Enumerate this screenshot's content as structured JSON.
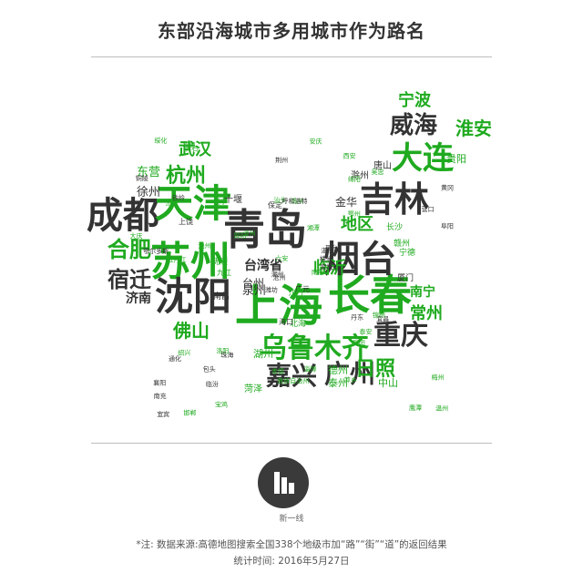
{
  "header": {
    "title": "东部沿海城市多用城市作为路名"
  },
  "chart_data": {
    "type": "wordcloud",
    "title": "东部沿海城市多用城市作为路名",
    "colors": {
      "dark": "#333333",
      "green": "#1faa1f",
      "light": "#6cc46c",
      "grey": "#777777"
    },
    "words": [
      {
        "text": "成都",
        "weight": 40,
        "color": "dark"
      },
      {
        "text": "天津",
        "weight": 42,
        "color": "green"
      },
      {
        "text": "苏州",
        "weight": 44,
        "color": "green"
      },
      {
        "text": "青岛",
        "weight": 46,
        "color": "dark"
      },
      {
        "text": "上海",
        "weight": 48,
        "color": "green"
      },
      {
        "text": "长春",
        "weight": 46,
        "color": "green"
      },
      {
        "text": "沈阳",
        "weight": 42,
        "color": "dark"
      },
      {
        "text": "烟台",
        "weight": 40,
        "color": "dark"
      },
      {
        "text": "吉林",
        "weight": 38,
        "color": "dark"
      },
      {
        "text": "大连",
        "weight": 34,
        "color": "green"
      },
      {
        "text": "乌鲁木齐",
        "weight": 30,
        "color": "green"
      },
      {
        "text": "重庆",
        "weight": 30,
        "color": "dark"
      },
      {
        "text": "嘉兴",
        "weight": 28,
        "color": "dark"
      },
      {
        "text": "广州",
        "weight": 28,
        "color": "dark"
      },
      {
        "text": "威海",
        "weight": 26,
        "color": "dark"
      },
      {
        "text": "合肥",
        "weight": 24,
        "color": "green"
      },
      {
        "text": "宿迁",
        "weight": 24,
        "color": "dark"
      },
      {
        "text": "杭州",
        "weight": 22,
        "color": "green"
      },
      {
        "text": "日照",
        "weight": 22,
        "color": "green"
      },
      {
        "text": "淮安",
        "weight": 20,
        "color": "green"
      },
      {
        "text": "佛山",
        "weight": 20,
        "color": "green"
      },
      {
        "text": "宁波",
        "weight": 18,
        "color": "green"
      },
      {
        "text": "武汉",
        "weight": 18,
        "color": "green"
      },
      {
        "text": "地区",
        "weight": 18,
        "color": "green"
      },
      {
        "text": "临沂",
        "weight": 18,
        "color": "green"
      },
      {
        "text": "常州",
        "weight": 18,
        "color": "green"
      },
      {
        "text": "济南",
        "weight": 14,
        "color": "dark"
      },
      {
        "text": "台湾省",
        "weight": 14,
        "color": "dark"
      },
      {
        "text": "东营",
        "weight": 13,
        "color": "green"
      },
      {
        "text": "徐州",
        "weight": 13,
        "color": "dark"
      },
      {
        "text": "南宁",
        "weight": 14,
        "color": "green"
      },
      {
        "text": "金华",
        "weight": 12,
        "color": "dark"
      },
      {
        "text": "泉州",
        "weight": 13,
        "color": "dark"
      },
      {
        "text": "台州",
        "weight": 12,
        "color": "dark"
      },
      {
        "text": "湖州",
        "weight": 11,
        "color": "green"
      },
      {
        "text": "德州",
        "weight": 11,
        "color": "green"
      },
      {
        "text": "泰州",
        "weight": 11,
        "color": "green"
      },
      {
        "text": "中山",
        "weight": 11,
        "color": "green"
      },
      {
        "text": "菏泽",
        "weight": 10,
        "color": "green"
      },
      {
        "text": "唐山",
        "weight": 10,
        "color": "dark"
      },
      {
        "text": "贵阳",
        "weight": 11,
        "color": "green"
      },
      {
        "text": "滁州",
        "weight": 10,
        "color": "dark"
      },
      {
        "text": "十堰",
        "weight": 10,
        "color": "dark"
      },
      {
        "text": "抚顺",
        "weight": 9,
        "color": "green"
      },
      {
        "text": "南昌",
        "weight": 9,
        "color": "dark"
      },
      {
        "text": "厦门",
        "weight": 9,
        "color": "dark"
      },
      {
        "text": "长沙",
        "weight": 9,
        "color": "green"
      },
      {
        "text": "赣州",
        "weight": 9,
        "color": "green"
      },
      {
        "text": "北海",
        "weight": 9,
        "color": "green"
      },
      {
        "text": "宁德",
        "weight": 9,
        "color": "green"
      },
      {
        "text": "广元",
        "weight": 8,
        "color": "dark"
      },
      {
        "text": "保定",
        "weight": 8,
        "color": "dark"
      },
      {
        "text": "上饶",
        "weight": 8,
        "color": "dark"
      },
      {
        "text": "九江",
        "weight": 8,
        "color": "green"
      },
      {
        "text": "海口",
        "weight": 8,
        "color": "dark"
      },
      {
        "text": "江门",
        "weight": 8,
        "color": "green"
      },
      {
        "text": "济宁",
        "weight": 8,
        "color": "green"
      },
      {
        "text": "沧州",
        "weight": 7,
        "color": "dark"
      },
      {
        "text": "襄阳",
        "weight": 7,
        "color": "dark"
      },
      {
        "text": "湛江",
        "weight": 7,
        "color": "dark"
      },
      {
        "text": "珠海",
        "weight": 7,
        "color": "dark"
      },
      {
        "text": "西安",
        "weight": 7,
        "color": "green"
      },
      {
        "text": "扬州",
        "weight": 7,
        "color": "green"
      },
      {
        "text": "绵阳",
        "weight": 7,
        "color": "green"
      },
      {
        "text": "南阳",
        "weight": 7,
        "color": "green"
      },
      {
        "text": "黄石",
        "weight": 7,
        "color": "green"
      },
      {
        "text": "温州",
        "weight": 7,
        "color": "green"
      },
      {
        "text": "牡丹江",
        "weight": 7,
        "color": "green"
      },
      {
        "text": "黄冈",
        "weight": 7,
        "color": "dark"
      },
      {
        "text": "潍坊",
        "weight": 7,
        "color": "dark"
      },
      {
        "text": "鄂州",
        "weight": 7,
        "color": "green"
      },
      {
        "text": "邯郸",
        "weight": 7,
        "color": "green"
      },
      {
        "text": "汕头",
        "weight": 7,
        "color": "green"
      },
      {
        "text": "湘潭",
        "weight": 7,
        "color": "green"
      },
      {
        "text": "绍兴",
        "weight": 7,
        "color": "green"
      },
      {
        "text": "漳州",
        "weight": 7,
        "color": "green"
      },
      {
        "text": "南充",
        "weight": 7,
        "color": "dark"
      },
      {
        "text": "临汾",
        "weight": 7,
        "color": "dark"
      },
      {
        "text": "呼和浩特",
        "weight": 7,
        "color": "dark"
      },
      {
        "text": "邢台",
        "weight": 7,
        "color": "dark"
      },
      {
        "text": "宜昌",
        "weight": 7,
        "color": "dark"
      },
      {
        "text": "铁岭",
        "weight": 7,
        "color": "dark"
      },
      {
        "text": "荆州",
        "weight": 7,
        "color": "dark"
      },
      {
        "text": "鄂尔多斯",
        "weight": 7,
        "color": "dark"
      },
      {
        "text": "丹东",
        "weight": 7,
        "color": "dark"
      },
      {
        "text": "阜阳",
        "weight": 7,
        "color": "dark"
      },
      {
        "text": "潮州",
        "weight": 7,
        "color": "dark"
      },
      {
        "text": "孝感",
        "weight": 7,
        "color": "green"
      },
      {
        "text": "六安",
        "weight": 7,
        "color": "green"
      },
      {
        "text": "遂宁",
        "weight": 7,
        "color": "green"
      },
      {
        "text": "吴忠",
        "weight": 7,
        "color": "green"
      },
      {
        "text": "洛阳",
        "weight": 7,
        "color": "green"
      },
      {
        "text": "鹰潭",
        "weight": 7,
        "color": "green"
      },
      {
        "text": "梅州",
        "weight": 7,
        "color": "green"
      },
      {
        "text": "锦州",
        "weight": 7,
        "color": "green"
      },
      {
        "text": "安庆",
        "weight": 7,
        "color": "green"
      },
      {
        "text": "揭阳",
        "weight": 7,
        "color": "green"
      },
      {
        "text": "池州",
        "weight": 7,
        "color": "green"
      },
      {
        "text": "岳阳",
        "weight": 7,
        "color": "green"
      },
      {
        "text": "宝鸡",
        "weight": 7,
        "color": "green"
      },
      {
        "text": "大庆",
        "weight": 7,
        "color": "green"
      },
      {
        "text": "株洲",
        "weight": 7,
        "color": "dark"
      },
      {
        "text": "宜宾",
        "weight": 7,
        "color": "dark"
      },
      {
        "text": "彝族自治州",
        "weight": 7,
        "color": "green"
      },
      {
        "text": "宣城",
        "weight": 7,
        "color": "dark"
      },
      {
        "text": "通化",
        "weight": 7,
        "color": "dark"
      },
      {
        "text": "营口",
        "weight": 7,
        "color": "dark"
      },
      {
        "text": "铜陵",
        "weight": 7,
        "color": "dark"
      },
      {
        "text": "泰安",
        "weight": 7,
        "color": "green"
      },
      {
        "text": "萍乡",
        "weight": 7,
        "color": "green"
      },
      {
        "text": "包头",
        "weight": 7,
        "color": "dark"
      },
      {
        "text": "松原",
        "weight": 7,
        "color": "green"
      },
      {
        "text": "绥化",
        "weight": 7,
        "color": "green"
      },
      {
        "text": "淄博",
        "weight": 7,
        "color": "green"
      }
    ]
  },
  "logo": {
    "caption": "新一线"
  },
  "footer": {
    "note": "*注: 数据来源:高德地图搜索全国338个地级市加“路”“街”“道”的返回结果",
    "date": "统计时间: 2016年5月27日"
  }
}
